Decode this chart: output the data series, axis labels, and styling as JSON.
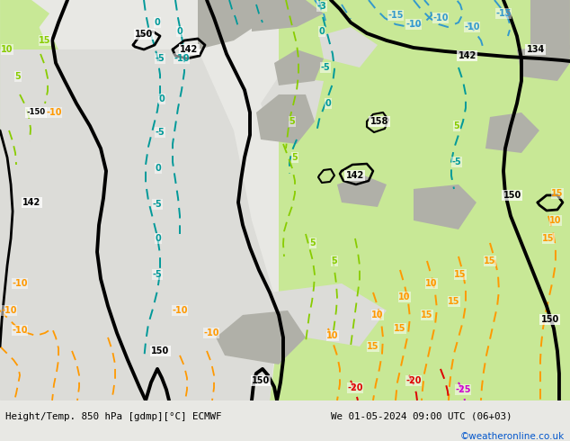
{
  "title_left": "Height/Temp. 850 hPa [gdmp][°C] ECMWF",
  "title_right": "We 01-05-2024 09:00 UTC (06+03)",
  "watermark": "©weatheronline.co.uk",
  "watermark_color": "#0055cc",
  "bg_white": "#e8e8e4",
  "bg_green": "#c8e896",
  "bg_gray": "#aaaaaa",
  "bottom_color": "#ffffff",
  "color_black": "#000000",
  "color_blue": "#3399cc",
  "color_teal": "#00aaaa",
  "color_lgreen": "#88cc00",
  "color_orange": "#ff9900",
  "color_red": "#dd0000",
  "color_magenta": "#cc00cc"
}
